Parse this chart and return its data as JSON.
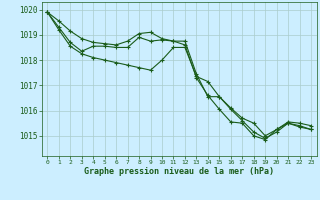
{
  "bg_color": "#cceeff",
  "grid_color": "#aacccc",
  "line_color": "#1a5c1a",
  "xlabel": "Graphe pression niveau de la mer (hPa)",
  "xlabel_color": "#1a5c1a",
  "tick_color": "#1a5c1a",
  "ylim": [
    1014.2,
    1020.3
  ],
  "xlim": [
    -0.5,
    23.5
  ],
  "yticks": [
    1015,
    1016,
    1017,
    1018,
    1019,
    1020
  ],
  "xticks": [
    0,
    1,
    2,
    3,
    4,
    5,
    6,
    7,
    8,
    9,
    10,
    11,
    12,
    13,
    14,
    15,
    16,
    17,
    18,
    19,
    20,
    21,
    22,
    23
  ],
  "series1": {
    "x": [
      0,
      1,
      2,
      3,
      4,
      5,
      6,
      7,
      8,
      9,
      10,
      11,
      12,
      13,
      14,
      15,
      16,
      17,
      18,
      19,
      20,
      21,
      22,
      23
    ],
    "y": [
      1019.9,
      1019.55,
      1019.15,
      1018.85,
      1018.7,
      1018.65,
      1018.6,
      1018.75,
      1019.05,
      1019.1,
      1018.85,
      1018.75,
      1018.75,
      1017.45,
      1016.55,
      1016.55,
      1016.1,
      1015.7,
      1015.5,
      1015.0,
      1015.25,
      1015.55,
      1015.5,
      1015.4
    ]
  },
  "series2": {
    "x": [
      0,
      1,
      2,
      3,
      4,
      5,
      6,
      7,
      8,
      9,
      10,
      11,
      12,
      13,
      14,
      15,
      16,
      17,
      18,
      19,
      20,
      21,
      22,
      23
    ],
    "y": [
      1019.9,
      1019.3,
      1018.7,
      1018.35,
      1018.55,
      1018.55,
      1018.5,
      1018.5,
      1018.9,
      1018.75,
      1018.8,
      1018.75,
      1018.6,
      1017.3,
      1016.6,
      1016.05,
      1015.55,
      1015.5,
      1015.0,
      1014.85,
      1015.25,
      1015.5,
      1015.4,
      1015.25
    ]
  },
  "series3": {
    "x": [
      0,
      1,
      2,
      3,
      4,
      5,
      6,
      7,
      8,
      9,
      10,
      11,
      12,
      13,
      14,
      15,
      16,
      17,
      18,
      19,
      20,
      21,
      22,
      23
    ],
    "y": [
      1019.9,
      1019.2,
      1018.55,
      1018.25,
      1018.1,
      1018.0,
      1017.9,
      1017.8,
      1017.7,
      1017.6,
      1018.0,
      1018.5,
      1018.5,
      1017.35,
      1017.15,
      1016.55,
      1016.05,
      1015.6,
      1015.15,
      1014.9,
      1015.15,
      1015.5,
      1015.35,
      1015.25
    ]
  }
}
